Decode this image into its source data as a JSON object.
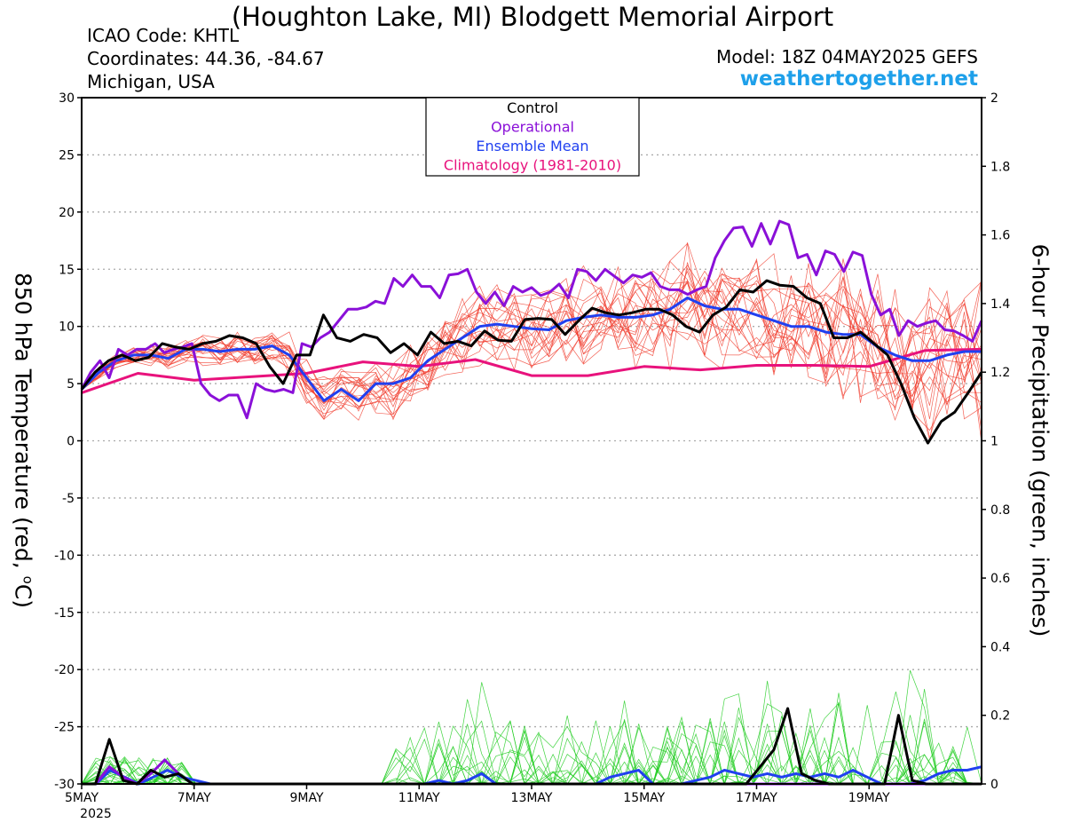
{
  "header": {
    "title": "(Houghton Lake, MI) Blodgett Memorial Airport",
    "icao": "ICAO Code: KHTL",
    "coordinates": "Coordinates: 44.36, -84.67",
    "region": "Michigan, USA",
    "model": "Model: 18Z 04MAY2025 GEFS",
    "brand": "weathertogether.net"
  },
  "chart_data": {
    "type": "line",
    "title": "(Houghton Lake, MI) Blodgett Memorial Airport",
    "ylabel": "850 hPa Temperature (red, °C)",
    "ylabel_main": "850 hPa Temperature (red, ",
    "ylabel_deg": "o",
    "ylabel_unit": "C)",
    "y2label": "6-hour Precipitation (green, inches)",
    "ylim": [
      -30,
      30
    ],
    "y2lim": [
      0,
      2
    ],
    "yticks": [
      "30",
      "25",
      "20",
      "15",
      "10",
      "5",
      "0",
      "-5",
      "-10",
      "-15",
      "-20",
      "-25",
      "-30"
    ],
    "y2ticks": [
      "2",
      "1.8",
      "1.6",
      "1.4",
      "1.2",
      "1",
      "0.8",
      "0.6",
      "0.4",
      "0.2",
      "0"
    ],
    "xlim": [
      0,
      64
    ],
    "xtick_positions": [
      0,
      8,
      16,
      24,
      32,
      40,
      48,
      56
    ],
    "xticks": [
      "5MAY",
      "7MAY",
      "9MAY",
      "11MAY",
      "13MAY",
      "15MAY",
      "17MAY",
      "19MAY"
    ],
    "xyear": "2025",
    "grid": true,
    "legend_position": "top-center",
    "legend": [
      {
        "label": "Control",
        "color": "#000000"
      },
      {
        "label": "Operational",
        "color": "#8a10d8"
      },
      {
        "label": "Ensemble Mean",
        "color": "#2040f0"
      },
      {
        "label": "Climatology (1981-2010)",
        "color": "#e8127c"
      }
    ],
    "colors": {
      "members_temp": "#f03a2a",
      "members_precip": "#20cc20"
    },
    "series": [
      {
        "name": "Control",
        "axis": "temp",
        "step": 1,
        "values": [
          4.5,
          6,
          7,
          7.5,
          7,
          7.3,
          8.5,
          8.2,
          8,
          8.5,
          8.7,
          9.2,
          9,
          8.5,
          6.5,
          5,
          7.5,
          7.5,
          11,
          9,
          8.7,
          9.3,
          9,
          7.7,
          8.5,
          7.5,
          9.5,
          8.5,
          8.7,
          8.3,
          9.6,
          8.8,
          8.7,
          10.6,
          10.7,
          10.6,
          9.3,
          10.5,
          11.6,
          11.2,
          11,
          11.2,
          11.5,
          11.5,
          11,
          10,
          9.5,
          11,
          11.7,
          13.2,
          13,
          14,
          13.6,
          13.5,
          12.5,
          12,
          9,
          9,
          9.5,
          8.5,
          7.5,
          5,
          2,
          -0.2,
          1.7,
          2.5,
          4.2,
          6
        ]
      },
      {
        "name": "Operational",
        "axis": "temp",
        "step": 1,
        "values": [
          4.5,
          6,
          7,
          5.5,
          8,
          7.5,
          8,
          8,
          8.5,
          7.7,
          8,
          8.2,
          8.5,
          5,
          4,
          3.5,
          4,
          4,
          2,
          5,
          4.5,
          4.3,
          4.5,
          4.2,
          8.5,
          8.2,
          9,
          9.5,
          10.5,
          11.5,
          11.5,
          11.7,
          12.2,
          12,
          14.2,
          13.5,
          14.5,
          13.5,
          13.5,
          12.5,
          14.5,
          14.6,
          15,
          13,
          12,
          13,
          11.8,
          13.5,
          13,
          13.4,
          12.7,
          13,
          13.7,
          12.5,
          15,
          14.8,
          14,
          15,
          14.4,
          13.8,
          14.5,
          14.3,
          14.7,
          13.5,
          13.2,
          13.2,
          12.8,
          13.2,
          13.5,
          16,
          17.5,
          18.6,
          18.7,
          17,
          19,
          17.2,
          19.2,
          18.9,
          16,
          16.3,
          14.5,
          16.6,
          16.3,
          14.8,
          16.5,
          16.2,
          12.8,
          11,
          11.5,
          9.2,
          10.5,
          10,
          10.3,
          10.5,
          9.7,
          9.6,
          9.2,
          8.7,
          10.5
        ]
      },
      {
        "name": "Ensemble Mean",
        "axis": "temp",
        "step": 1,
        "values": [
          4.5,
          6,
          7,
          7.5,
          7.5,
          7.2,
          8,
          8,
          7.8,
          8,
          8,
          8.3,
          7.5,
          5.5,
          3.5,
          4.5,
          3.5,
          5,
          5,
          5.5,
          7,
          8,
          9,
          10,
          10.2,
          10,
          9.8,
          9.7,
          10.5,
          10.8,
          11,
          10.8,
          10.8,
          11,
          11.5,
          12.5,
          11.8,
          11.5,
          11.5,
          11,
          10.5,
          10,
          10,
          9.5,
          9.3,
          9.3,
          8.2,
          7.5,
          7,
          7,
          7.5,
          7.8,
          7.8
        ]
      },
      {
        "name": "Climatology (1981-2010)",
        "axis": "temp",
        "step": 4,
        "values": [
          4.2,
          5.9,
          5.3,
          5.6,
          5.9,
          6.9,
          6.5,
          7.1,
          5.7,
          5.7,
          6.5,
          6.2,
          6.6,
          6.6,
          6.5,
          7.9,
          8
        ]
      },
      {
        "name": "Control",
        "axis": "precip",
        "step": 1,
        "values": [
          0,
          0,
          0.13,
          0.01,
          0,
          0.04,
          0.02,
          0.03,
          0,
          0,
          0,
          0,
          0,
          0,
          0,
          0,
          0,
          0,
          0,
          0,
          0,
          0,
          0,
          0,
          0,
          0,
          0,
          0,
          0,
          0,
          0,
          0,
          0,
          0,
          0,
          0,
          0,
          0,
          0,
          0,
          0,
          0,
          0,
          0,
          0,
          0,
          0,
          0,
          0,
          0.05,
          0.1,
          0.22,
          0.03,
          0.01,
          0,
          0,
          0,
          0,
          0,
          0.2,
          0.01,
          0,
          0,
          0,
          0,
          0
        ]
      },
      {
        "name": "Operational",
        "axis": "precip",
        "step": 1,
        "values": [
          0,
          0,
          0.05,
          0.02,
          0,
          0.03,
          0.07,
          0.03,
          0,
          0,
          0,
          0,
          0,
          0,
          0,
          0,
          0,
          0,
          0,
          0,
          0,
          0,
          0,
          0,
          0,
          0,
          0,
          0,
          0,
          0,
          0,
          0,
          0,
          0,
          0,
          0,
          0,
          0,
          0,
          0,
          0,
          0,
          0,
          0,
          0,
          0,
          0,
          0,
          0,
          0,
          0,
          0,
          0,
          0,
          0,
          0,
          0,
          0,
          0,
          0,
          0,
          0,
          0,
          0,
          0,
          0
        ]
      },
      {
        "name": "Ensemble Mean",
        "axis": "precip",
        "step": 1,
        "values": [
          0,
          0,
          0.04,
          0.02,
          0,
          0.02,
          0.04,
          0.02,
          0.01,
          0,
          0,
          0,
          0,
          0,
          0,
          0,
          0,
          0,
          0,
          0,
          0,
          0,
          0,
          0,
          0,
          0.01,
          0,
          0.01,
          0.03,
          0,
          0,
          0,
          0,
          0,
          0,
          0,
          0,
          0.02,
          0.03,
          0.04,
          0,
          0,
          0,
          0.01,
          0.02,
          0.04,
          0.03,
          0.02,
          0.03,
          0.02,
          0.03,
          0.02,
          0.03,
          0.02,
          0.04,
          0.02,
          0,
          0,
          0,
          0.01,
          0.03,
          0.04,
          0.04,
          0.05
        ]
      }
    ]
  }
}
